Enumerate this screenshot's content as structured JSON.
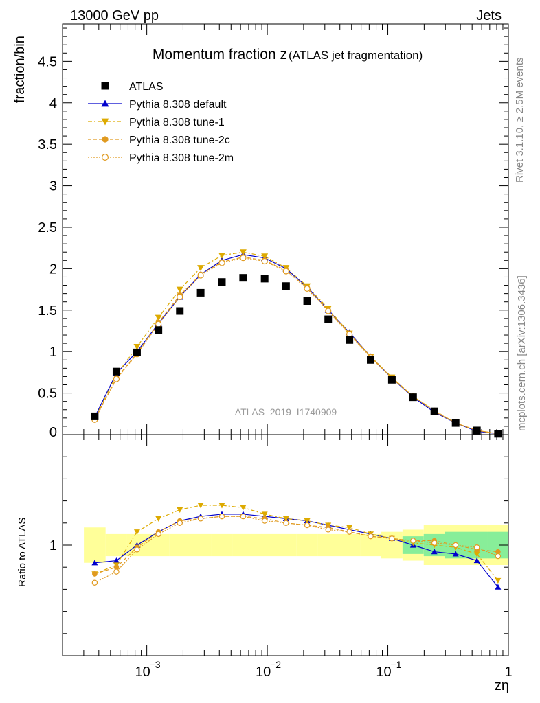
{
  "header": {
    "left": "13000 GeV pp",
    "right": "Jets"
  },
  "side_labels": {
    "top": "Rivet 3.1.10, ≥ 2.5M events",
    "bottom": "mcplots.cern.ch [arXiv:1306.3436]"
  },
  "chart_data": {
    "type": "line",
    "title_main": "Momentum fraction z",
    "title_sub": "(ATLAS jet fragmentation)",
    "analysis_label": "ATLAS_2019_I1740909",
    "xlabel": "zη",
    "ylabel": "fraction/bin",
    "ratio_ylabel": "Ratio to ATLAS",
    "x_scale": "log",
    "xlim": [
      0.0002,
      1
    ],
    "ylim": [
      0,
      4.95
    ],
    "ratio_ylim": [
      0.5,
      1.5
    ],
    "x_tick_labels": [
      "10",
      "10",
      "10",
      "1"
    ],
    "x_tick_exponents": [
      "−3",
      "−2",
      "−1",
      ""
    ],
    "y_tick_labels": [
      "0",
      "0.5",
      "1",
      "1.5",
      "2",
      "2.5",
      "3",
      "3.5",
      "4",
      "4.5"
    ],
    "ratio_tick_labels": [
      "1"
    ],
    "legend_position": "top-left",
    "x": [
      0.00037,
      0.00056,
      0.00083,
      0.00125,
      0.00188,
      0.0028,
      0.0042,
      0.0063,
      0.0095,
      0.0143,
      0.0214,
      0.032,
      0.048,
      0.072,
      0.108,
      0.162,
      0.243,
      0.365,
      0.548,
      0.82
    ],
    "data": {
      "name": "ATLAS",
      "values": [
        0.22,
        0.76,
        0.99,
        1.26,
        1.49,
        1.71,
        1.84,
        1.89,
        1.88,
        1.79,
        1.61,
        1.39,
        1.14,
        0.9,
        0.66,
        0.45,
        0.28,
        0.14,
        0.05,
        0.01
      ],
      "band_inner": [
        0.08,
        0.03,
        0.03,
        0.03,
        0.03,
        0.03,
        0.03,
        0.03,
        0.03,
        0.03,
        0.03,
        0.03,
        0.03,
        0.03,
        0.03,
        0.04,
        0.05,
        0.06,
        0.06,
        0.06
      ],
      "band_outer": [
        0.08,
        0.05,
        0.05,
        0.05,
        0.05,
        0.05,
        0.05,
        0.05,
        0.05,
        0.05,
        0.05,
        0.05,
        0.05,
        0.05,
        0.06,
        0.07,
        0.09,
        0.09,
        0.09,
        0.09
      ]
    },
    "series": [
      {
        "name": "Pythia 8.308 default",
        "color": "#0000cc",
        "marker": "triangle-up",
        "values": [
          0.21,
          0.74,
          1.0,
          1.34,
          1.66,
          1.93,
          2.1,
          2.17,
          2.13,
          2.0,
          1.78,
          1.5,
          1.23,
          0.94,
          0.68,
          0.45,
          0.27,
          0.14,
          0.04,
          0.01
        ],
        "ratio": [
          0.92,
          0.93,
          1.0,
          1.06,
          1.11,
          1.13,
          1.14,
          1.14,
          1.13,
          1.12,
          1.11,
          1.09,
          1.07,
          1.05,
          1.03,
          1.0,
          0.97,
          0.96,
          0.93,
          0.81
        ]
      },
      {
        "name": "Pythia 8.308 tune-1",
        "color": "#ddaa00",
        "marker": "triangle-down",
        "values": [
          0.19,
          0.72,
          1.06,
          1.41,
          1.75,
          2.01,
          2.16,
          2.2,
          2.15,
          2.01,
          1.79,
          1.52,
          1.22,
          0.94,
          0.69,
          0.46,
          0.29,
          0.14,
          0.05,
          0.01
        ],
        "ratio": [
          0.87,
          0.91,
          1.06,
          1.12,
          1.16,
          1.18,
          1.18,
          1.17,
          1.14,
          1.12,
          1.11,
          1.09,
          1.08,
          1.05,
          1.03,
          1.01,
          1.0,
          0.99,
          0.96,
          0.84
        ]
      },
      {
        "name": "Pythia 8.308 tune-2c",
        "color": "#e09a20",
        "marker": "circle",
        "values": [
          0.19,
          0.68,
          0.98,
          1.35,
          1.68,
          1.93,
          2.08,
          2.14,
          2.1,
          1.98,
          1.77,
          1.5,
          1.22,
          0.94,
          0.68,
          0.46,
          0.29,
          0.14,
          0.05,
          0.01
        ],
        "ratio": [
          0.87,
          0.9,
          0.99,
          1.06,
          1.11,
          1.12,
          1.13,
          1.13,
          1.12,
          1.1,
          1.09,
          1.08,
          1.06,
          1.04,
          1.03,
          1.02,
          1.02,
          1.0,
          0.98,
          0.97
        ]
      },
      {
        "name": "Pythia 8.308 tune-2m",
        "color": "#e09a20",
        "marker": "open-circle",
        "values": [
          0.18,
          0.67,
          0.97,
          1.33,
          1.66,
          1.92,
          2.07,
          2.13,
          2.09,
          1.97,
          1.76,
          1.49,
          1.21,
          0.93,
          0.68,
          0.46,
          0.28,
          0.14,
          0.05,
          0.01
        ],
        "ratio": [
          0.83,
          0.88,
          0.98,
          1.05,
          1.1,
          1.12,
          1.13,
          1.13,
          1.11,
          1.1,
          1.09,
          1.07,
          1.06,
          1.04,
          1.03,
          1.02,
          1.01,
          1.0,
          0.99,
          0.95
        ]
      }
    ]
  }
}
